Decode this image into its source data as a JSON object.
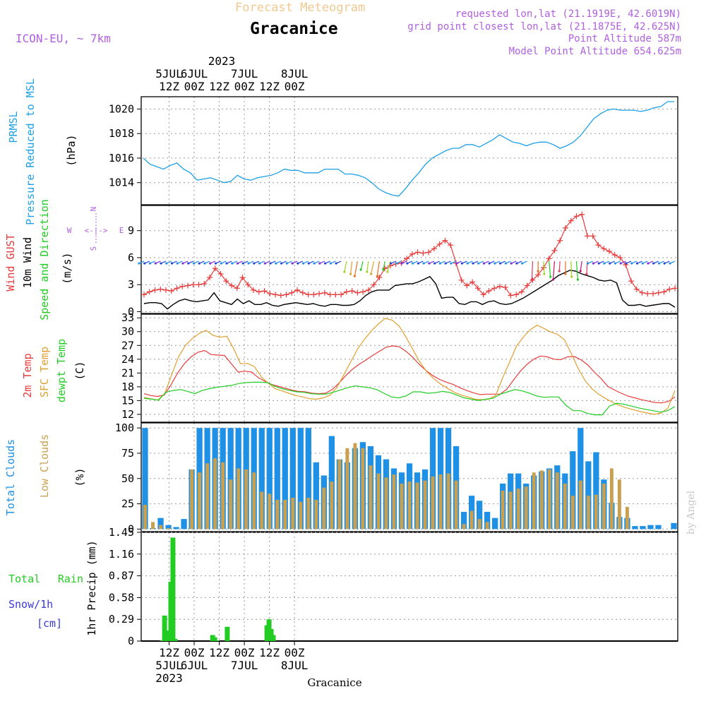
{
  "header": {
    "subtitle": "Forecast Meteogram",
    "location": "Gracanice",
    "model": "ICON-EU, ~ 7km",
    "requested": "requested lon,lat (21.1919E, 42.6019N)",
    "gridpoint": "grid point closest lon,lat (21.1875E, 42.625N)",
    "point_alt": "Point Altitude 587m",
    "model_alt": "Model Point Altitude 654.625m",
    "footer_name": "Gracanice",
    "credit": "by Angel"
  },
  "colors": {
    "pressure": "#1ea0e6",
    "gust": "#e83c3c",
    "wind": "#000000",
    "dir": "#22cc22",
    "t2m": "#e83c3c",
    "sfc": "#e0a030",
    "dew": "#22cc22",
    "total_cloud": "#1e90e6",
    "low_cloud": "#c8a050",
    "rain": "#22cc22",
    "snow": "#3a3ad8",
    "purple": "#b060e0",
    "title_orange": "#f0c890"
  },
  "time_axis": {
    "top_year": "2023",
    "ticks": [
      {
        "step": 12,
        "top": "5JUL",
        "bottom": "12Z"
      },
      {
        "step": 24,
        "top": "6JUL",
        "bottom": "00Z"
      },
      {
        "step": 36,
        "top": "",
        "bottom": "12Z"
      },
      {
        "step": 48,
        "top": "7JUL",
        "bottom": "00Z"
      },
      {
        "step": 60,
        "top": "",
        "bottom": "12Z"
      },
      {
        "step": 72,
        "top": "8JUL",
        "bottom": "00Z"
      }
    ],
    "bottom_labels": [
      {
        "step": 12,
        "l1": "12Z",
        "l2": "5JUL",
        "l3": "2023"
      },
      {
        "step": 24,
        "l1": "00Z",
        "l2": "6JUL",
        "l3": ""
      },
      {
        "step": 36,
        "l1": "12Z",
        "l2": "",
        "l3": ""
      },
      {
        "step": 48,
        "l1": "00Z",
        "l2": "7JUL",
        "l3": ""
      },
      {
        "step": 60,
        "l1": "12Z",
        "l2": "",
        "l3": ""
      },
      {
        "step": 72,
        "l1": "00Z",
        "l2": "8JUL",
        "l3": ""
      }
    ]
  },
  "chart_data": [
    {
      "type": "line",
      "name": "pressure",
      "title": "PRMSL Pressure Reduced to MSL",
      "label1": "PRMSL",
      "label2": "Pressure Reduced to MSL",
      "ylabel": "(hPa)",
      "ylim": [
        1012.2,
        1021.0
      ],
      "yticks": [
        1014,
        1016,
        1018,
        1020
      ],
      "x_start": 0,
      "x_step": 1,
      "series": [
        {
          "name": "PRMSL",
          "values": [
            1016.0,
            1015.5,
            1015.3,
            1015.1,
            1015.4,
            1015.6,
            1015.1,
            1014.8,
            1014.2,
            1014.3,
            1014.4,
            1014.2,
            1014.0,
            1014.1,
            1014.6,
            1014.3,
            1014.2,
            1014.4,
            1014.5,
            1014.6,
            1014.8,
            1015.1,
            1015.0,
            1015.0,
            1014.8,
            1014.8,
            1014.8,
            1015.1,
            1015.1,
            1015.1,
            1014.7,
            1014.7,
            1014.6,
            1014.4,
            1014.0,
            1013.5,
            1013.2,
            1013.0,
            1012.9,
            1013.5,
            1014.2,
            1014.8,
            1015.5,
            1016.0,
            1016.3,
            1016.6,
            1016.8,
            1016.8,
            1017.1,
            1017.1,
            1016.9,
            1017.2,
            1017.5,
            1017.9,
            1017.6,
            1017.3,
            1017.2,
            1017.0,
            1017.2,
            1017.3,
            1017.3,
            1017.1,
            1016.8,
            1017.0,
            1017.3,
            1017.8,
            1018.5,
            1019.2,
            1019.6,
            1019.9,
            1020.0,
            1019.9,
            1019.9,
            1019.9,
            1019.8,
            1019.9,
            1020.1,
            1020.2,
            1020.6,
            1020.6
          ]
        }
      ]
    },
    {
      "type": "line",
      "name": "wind",
      "label1": "Wind GUST",
      "label2": "10m Wind",
      "label3": "Speed and Direction",
      "ylabel": "(m/s)",
      "compass": {
        "w": "W",
        "e": "E",
        "n": "N",
        "s": "S"
      },
      "ylim": [
        -0.2,
        11.8
      ],
      "yticks": [
        0,
        3,
        6,
        9
      ],
      "series": [
        {
          "name": "Wind GUST",
          "values": [
            1.9,
            2.2,
            2.4,
            2.5,
            2.4,
            2.3,
            2.6,
            2.8,
            2.9,
            3.0,
            3.0,
            3.1,
            3.8,
            4.8,
            4.2,
            3.4,
            2.9,
            2.6,
            3.8,
            3.0,
            2.4,
            2.2,
            2.3,
            2.0,
            1.9,
            1.8,
            1.9,
            2.1,
            2.4,
            2.1,
            1.9,
            1.9,
            2.0,
            2.1,
            1.9,
            1.9,
            1.9,
            2.2,
            2.3,
            2.1,
            2.2,
            2.4,
            3.0,
            3.8,
            4.8,
            5.1,
            5.3,
            5.4,
            5.9,
            6.4,
            6.6,
            6.5,
            6.6,
            7.0,
            7.5,
            7.9,
            7.4,
            5.4,
            3.5,
            2.9,
            3.3,
            2.6,
            1.9,
            2.3,
            2.6,
            2.8,
            2.7,
            1.8,
            1.9,
            2.2,
            2.9,
            3.5,
            4.1,
            4.9,
            5.9,
            6.8,
            7.9,
            9.3,
            10.1,
            10.6,
            10.8,
            8.4,
            8.4,
            7.4,
            7.0,
            6.7,
            6.3,
            6.0,
            5.2,
            3.4,
            2.5,
            2.1,
            2.0,
            2.0,
            2.1,
            2.2,
            2.5,
            2.6
          ]
        },
        {
          "name": "10m Wind",
          "values": [
            0.9,
            1.0,
            1.0,
            0.9,
            0.3,
            0.8,
            1.2,
            1.4,
            1.2,
            1.1,
            1.2,
            1.3,
            2.1,
            1.2,
            1.0,
            0.8,
            1.4,
            0.9,
            1.2,
            0.8,
            0.8,
            1.0,
            0.7,
            0.6,
            0.8,
            0.9,
            1.0,
            0.9,
            0.8,
            0.9,
            0.7,
            0.6,
            0.8,
            0.8,
            0.7,
            0.7,
            0.8,
            1.2,
            1.8,
            2.2,
            2.4,
            2.4,
            2.4,
            2.9,
            3.0,
            3.1,
            3.1,
            3.3,
            3.6,
            3.9,
            3.1,
            1.5,
            1.6,
            1.6,
            0.9,
            0.8,
            1.1,
            1.1,
            0.8,
            1.1,
            1.2,
            0.9,
            0.8,
            0.9,
            1.2,
            1.5,
            1.9,
            2.3,
            2.7,
            3.1,
            3.5,
            4.0,
            4.3,
            4.6,
            4.5,
            4.2,
            4.0,
            3.8,
            3.5,
            3.4,
            3.5,
            3.2,
            1.3,
            0.7,
            0.7,
            0.8,
            0.6,
            0.7,
            0.8,
            0.9,
            0.9,
            0.5
          ]
        }
      ]
    },
    {
      "type": "line",
      "name": "temperature",
      "label1": "2m Temp",
      "label2": "SFC Temp",
      "label3": "dewpt Temp",
      "ylabel": "(C)",
      "ylim": [
        10.3,
        33.8
      ],
      "yticks": [
        12,
        15,
        18,
        21,
        24,
        27,
        30,
        33
      ],
      "series": [
        {
          "name": "2m Temp",
          "values": [
            16.5,
            16.1,
            15.9,
            16.2,
            18.4,
            21.0,
            23.0,
            24.5,
            25.5,
            25.9,
            25.0,
            24.9,
            24.8,
            23.0,
            21.2,
            21.4,
            21.2,
            20.0,
            19.2,
            18.5,
            18.1,
            17.7,
            17.3,
            17.0,
            16.9,
            16.6,
            16.5,
            16.6,
            17.4,
            18.8,
            20.4,
            21.8,
            22.9,
            23.8,
            24.8,
            25.7,
            26.6,
            26.9,
            26.7,
            25.7,
            24.4,
            22.8,
            21.5,
            20.4,
            19.6,
            19.0,
            18.5,
            17.8,
            17.2,
            16.7,
            16.3,
            16.4,
            16.4,
            16.4,
            17.5,
            19.5,
            21.4,
            22.9,
            24.0,
            24.7,
            24.5,
            24.0,
            23.9,
            24.5,
            24.6,
            23.9,
            22.8,
            21.2,
            19.8,
            18.1,
            17.3,
            16.6,
            16.0,
            15.6,
            15.2,
            14.9,
            14.6,
            14.5,
            14.8,
            15.8
          ]
        },
        {
          "name": "SFC Temp",
          "values": [
            15.7,
            15.4,
            15.1,
            16.5,
            20.6,
            24.5,
            27.0,
            28.5,
            29.6,
            30.3,
            29.2,
            28.8,
            29.0,
            26.3,
            23.0,
            23.1,
            22.4,
            20.2,
            18.8,
            17.6,
            17.1,
            16.6,
            16.1,
            15.8,
            15.4,
            15.3,
            15.6,
            16.2,
            17.9,
            20.7,
            23.5,
            26.3,
            28.4,
            30.2,
            31.7,
            32.9,
            32.5,
            31.2,
            28.8,
            26.1,
            23.4,
            21.3,
            19.8,
            18.6,
            17.7,
            16.8,
            16.2,
            15.8,
            15.3,
            15.2,
            15.3,
            16.1,
            19.9,
            23.3,
            26.8,
            28.8,
            30.4,
            31.4,
            30.7,
            29.9,
            29.4,
            28.2,
            25.1,
            21.9,
            19.3,
            17.5,
            16.3,
            15.4,
            14.6,
            13.9,
            13.4,
            13.0,
            12.6,
            12.3,
            12.0,
            12.3,
            13.4,
            17.2
          ]
        },
        {
          "name": "dewpt Temp",
          "values": [
            15.5,
            15.3,
            15.1,
            16.8,
            17.2,
            17.4,
            17.0,
            16.5,
            17.2,
            17.6,
            17.9,
            18.1,
            18.3,
            18.7,
            18.9,
            19.0,
            19.0,
            18.9,
            18.1,
            17.6,
            17.2,
            16.9,
            16.8,
            16.5,
            16.4,
            16.4,
            16.8,
            17.3,
            17.8,
            18.2,
            18.0,
            17.8,
            17.4,
            16.6,
            15.8,
            15.6,
            16.0,
            16.9,
            16.9,
            16.6,
            16.7,
            17.0,
            16.8,
            16.2,
            15.6,
            15.3,
            15.0,
            15.3,
            15.5,
            16.4,
            16.9,
            17.4,
            17.1,
            16.6,
            16.0,
            15.7,
            15.8,
            15.8,
            14.0,
            12.8,
            12.8,
            12.2,
            11.9,
            11.9,
            13.8,
            14.4,
            14.2,
            13.8,
            13.4,
            13.1,
            12.8,
            12.5,
            12.8,
            13.7
          ]
        }
      ]
    },
    {
      "type": "bar",
      "name": "clouds",
      "label1": "Total Clouds",
      "label2": "Low Clouds",
      "ylabel": "(%)",
      "ylim": [
        -2.5,
        105
      ],
      "yticks": [
        0,
        25,
        50,
        75,
        100
      ],
      "series": [
        {
          "name": "Total Clouds",
          "values": [
            100,
            1,
            11,
            4,
            2,
            10,
            59,
            100,
            100,
            100,
            100,
            100,
            100,
            100,
            100,
            100,
            100,
            100,
            100,
            100,
            100,
            100,
            66,
            53,
            92,
            69,
            66,
            80,
            86,
            82,
            73,
            69,
            60,
            56,
            65,
            56,
            59,
            100,
            100,
            100,
            82,
            17,
            33,
            28,
            17,
            11,
            45,
            55,
            55,
            45,
            53,
            57,
            60,
            63,
            55,
            77,
            100,
            67,
            76,
            49,
            26,
            12,
            11,
            3,
            3,
            4,
            4,
            0,
            6
          ]
        },
        {
          "name": "Low Clouds",
          "values": [
            24,
            7,
            4,
            1,
            0,
            0,
            59,
            56,
            65,
            70,
            66,
            49,
            60,
            59,
            56,
            37,
            35,
            29,
            29,
            31,
            27,
            31,
            29,
            41,
            47,
            69,
            80,
            85,
            80,
            63,
            55,
            51,
            54,
            45,
            47,
            46,
            48,
            52,
            54,
            55,
            48,
            5,
            18,
            10,
            7,
            0,
            38,
            37,
            40,
            42,
            56,
            58,
            59,
            56,
            45,
            33,
            48,
            33,
            34,
            45,
            60,
            49,
            22,
            0,
            0,
            0,
            0,
            0,
            0
          ]
        }
      ]
    },
    {
      "type": "bar",
      "name": "precipitation",
      "label1": "Total Rain",
      "label2": "Snow/1h",
      "label3": "[cm]",
      "ylabel": "1hr Precip (mm)",
      "ylim": [
        0,
        1.45
      ],
      "yticks": [
        0,
        0.29,
        0.58,
        0.87,
        1.16,
        1.45
      ],
      "series": [
        {
          "name": "Total Rain",
          "values": [
            {
              "step": 9,
              "v": 0.01
            },
            {
              "step": 10,
              "v": 0.34
            },
            {
              "step": 11,
              "v": 0.05
            },
            {
              "step": 12,
              "v": 0.14
            },
            {
              "step": 13,
              "v": 0.79
            },
            {
              "step": 14,
              "v": 1.38
            },
            {
              "step": 15,
              "v": 0.03
            },
            {
              "step": 33,
              "v": 0.08
            },
            {
              "step": 34,
              "v": 0.05
            },
            {
              "step": 35,
              "v": 0.01
            },
            {
              "step": 40,
              "v": 0.19
            },
            {
              "step": 59,
              "v": 0.21
            },
            {
              "step": 60,
              "v": 0.29
            },
            {
              "step": 61,
              "v": 0.16
            },
            {
              "step": 62,
              "v": 0.08
            }
          ]
        },
        {
          "name": "Snow/1h",
          "values": []
        }
      ]
    }
  ]
}
